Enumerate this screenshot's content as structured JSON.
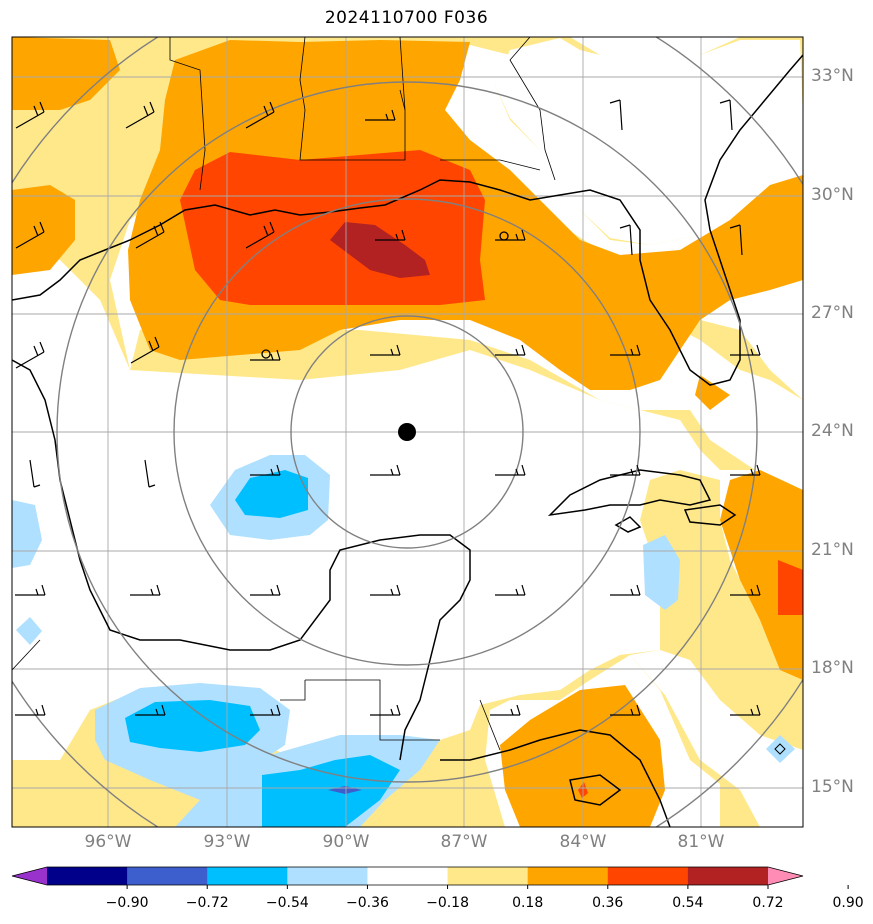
{
  "title": "2024110700 F036",
  "lon_labels": [
    "96°W",
    "93°W",
    "90°W",
    "87°W",
    "84°W",
    "81°W"
  ],
  "lat_labels": [
    "33°N",
    "30°N",
    "27°N",
    "24°N",
    "21°N",
    "18°N",
    "15°N"
  ],
  "colorbar": {
    "ticks": [
      "−0.90",
      "−0.72",
      "−0.54",
      "−0.36",
      "−0.18",
      "0.18",
      "0.36",
      "0.54",
      "0.72",
      "0.90"
    ],
    "colors": [
      "#9932cc",
      "#00008b",
      "#3c5fcd",
      "#00bfff",
      "#b0e0ff",
      "#ffffff",
      "#ffe88a",
      "#ffa500",
      "#ff4500",
      "#b22222",
      "#ff8cb4"
    ]
  },
  "fill_colors": {
    "light_yellow": "#ffe88a",
    "orange": "#ffa500",
    "red_orange": "#ff4500",
    "dark_red": "#b22222",
    "light_blue": "#b0e0ff",
    "deep_sky_blue": "#00bfff",
    "dark_blue": "#3c5fcd"
  },
  "storm_center_marker": "filled-black-circle"
}
